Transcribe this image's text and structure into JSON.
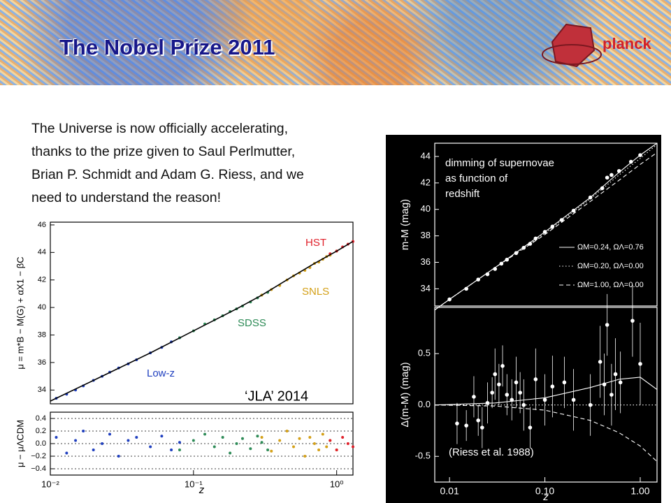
{
  "header": {
    "title": "The Nobel Prize 2011",
    "logo": "planck"
  },
  "text": {
    "lines": [
      "The Universe is now officially accelerating,",
      "thanks to the prize given to Saul Perlmutter,",
      "Brian P. Schmidt and Adam G. Riess, and we",
      "need to understand the reason!"
    ]
  },
  "chart_data": [
    {
      "type": "scatter",
      "log_x": true,
      "xlim": [
        0.01,
        1.3
      ],
      "ylim": [
        33,
        46.2
      ],
      "yticks": [
        34,
        36,
        38,
        40,
        42,
        44,
        46
      ],
      "ylabel": "μ = m*B − M(G) + αX1 − βC",
      "annotations": [
        "‘JLA’ 2014"
      ],
      "series": [
        {
          "name": "Low-z",
          "color": "#1f3fbf",
          "x": [
            0.011,
            0.013,
            0.015,
            0.017,
            0.02,
            0.023,
            0.026,
            0.03,
            0.035,
            0.04,
            0.05,
            0.06,
            0.07,
            0.08
          ],
          "values": [
            33.4,
            33.7,
            34.0,
            34.3,
            34.7,
            35.0,
            35.3,
            35.6,
            35.9,
            36.2,
            36.7,
            37.1,
            37.5,
            37.8
          ]
        },
        {
          "name": "SDSS",
          "color": "#2e8b57",
          "x": [
            0.08,
            0.1,
            0.12,
            0.14,
            0.16,
            0.18,
            0.2,
            0.22,
            0.25,
            0.28,
            0.3,
            0.33
          ],
          "values": [
            37.8,
            38.3,
            38.8,
            39.1,
            39.4,
            39.7,
            39.9,
            40.1,
            40.4,
            40.7,
            40.9,
            41.1
          ]
        },
        {
          "name": "SNLS",
          "color": "#d4a017",
          "x": [
            0.3,
            0.35,
            0.4,
            0.45,
            0.5,
            0.55,
            0.6,
            0.65,
            0.7,
            0.75,
            0.8,
            0.85,
            0.9,
            1.0
          ],
          "values": [
            40.9,
            41.3,
            41.6,
            42.0,
            42.3,
            42.5,
            42.7,
            42.9,
            43.2,
            43.3,
            43.5,
            43.7,
            43.8,
            44.1
          ]
        },
        {
          "name": "HST",
          "color": "#e0202a",
          "x": [
            0.9,
            1.0,
            1.1,
            1.2,
            1.3
          ],
          "values": [
            43.9,
            44.1,
            44.4,
            44.6,
            44.8
          ]
        },
        {
          "color": "#000000",
          "dash": "solid",
          "x": [
            0.01,
            0.02,
            0.05,
            0.1,
            0.2,
            0.3,
            0.5,
            0.7,
            1.0,
            1.3
          ],
          "values": [
            33.2,
            34.7,
            36.7,
            38.3,
            39.9,
            40.9,
            42.3,
            43.2,
            44.1,
            44.8
          ]
        }
      ]
    },
    {
      "type": "scatter",
      "log_x": true,
      "xlim": [
        0.01,
        1.3
      ],
      "ylim": [
        -0.5,
        0.5
      ],
      "grid": true,
      "yticks": [
        {
          "value": -0.4,
          "label": "−0.4"
        },
        {
          "value": -0.2,
          "label": "−0.2"
        },
        {
          "value": 0,
          "label": "0.0"
        },
        0.2,
        0.4
      ],
      "xticks": [
        {
          "value": 0.01,
          "label": "10⁻²"
        },
        {
          "value": 0.1,
          "label": "10⁻¹"
        },
        {
          "value": 1,
          "label": "10⁰"
        }
      ],
      "ylabel": "μ − μΛCDM",
      "xlabel": "z",
      "series": [
        {
          "color": "#1f3fbf",
          "x": [
            0.011,
            0.013,
            0.015,
            0.017,
            0.02,
            0.023,
            0.026,
            0.03,
            0.035,
            0.04,
            0.05,
            0.06,
            0.07,
            0.08
          ],
          "values": [
            0.1,
            -0.15,
            0.05,
            0.2,
            -0.1,
            0.0,
            0.15,
            -0.2,
            0.05,
            0.1,
            -0.05,
            0.12,
            -0.1,
            0.02
          ]
        },
        {
          "color": "#2e8b57",
          "x": [
            0.08,
            0.1,
            0.12,
            0.14,
            0.16,
            0.18,
            0.2,
            0.22,
            0.25,
            0.28,
            0.3,
            0.33
          ],
          "values": [
            -0.1,
            0.05,
            0.15,
            -0.05,
            0.1,
            -0.15,
            0.0,
            0.08,
            -0.08,
            0.12,
            0.02,
            -0.1
          ]
        },
        {
          "color": "#d4a017",
          "x": [
            0.3,
            0.35,
            0.4,
            0.45,
            0.5,
            0.55,
            0.6,
            0.65,
            0.7,
            0.75,
            0.8,
            0.85,
            0.9,
            1.0
          ],
          "values": [
            0.1,
            -0.12,
            0.05,
            0.2,
            -0.05,
            0.08,
            -0.2,
            0.1,
            0.0,
            -0.1,
            0.15,
            -0.05,
            0.05,
            -0.1
          ]
        },
        {
          "color": "#e0202a",
          "x": [
            0.9,
            1.0,
            1.1,
            1.2,
            1.3
          ],
          "values": [
            0.05,
            -0.1,
            0.1,
            0.0,
            -0.05
          ]
        }
      ]
    },
    {
      "type": "scatter",
      "log_x": true,
      "xlim": [
        0.007,
        1.5
      ],
      "ylim": [
        32.7,
        45
      ],
      "yticks": [
        34,
        36,
        38,
        40,
        42,
        44
      ],
      "ylabel": "m-M (mag)",
      "annotations": [
        "dimming of supernovae",
        "as function of",
        "redshift"
      ],
      "series": [
        {
          "color": "#ffffff",
          "x": [
            0.01,
            0.015,
            0.02,
            0.025,
            0.03,
            0.035,
            0.04,
            0.05,
            0.06,
            0.07,
            0.08,
            0.1,
            0.12,
            0.15,
            0.2,
            0.3,
            0.4,
            0.45,
            0.5,
            0.6,
            0.8,
            1.0
          ],
          "values": [
            33.2,
            34.0,
            34.7,
            35.1,
            35.5,
            35.9,
            36.2,
            36.7,
            37.1,
            37.4,
            37.8,
            38.3,
            38.7,
            39.2,
            39.9,
            40.9,
            41.6,
            42.4,
            42.6,
            42.9,
            43.6,
            44.1
          ]
        },
        {
          "name": "ΩM=0.24, ΩΛ=0.76",
          "color": "#ffffff",
          "dash": "solid",
          "x": [
            0.007,
            0.01,
            0.03,
            0.1,
            0.3,
            0.6,
            1.0,
            1.5
          ],
          "values": [
            32.4,
            33.2,
            35.6,
            38.3,
            40.9,
            42.8,
            44.1,
            45.0
          ]
        },
        {
          "name": "ΩM=0.20, ΩΛ=0.00",
          "color": "#ffffff",
          "dash": "dotted",
          "x": [
            0.007,
            0.01,
            0.03,
            0.1,
            0.3,
            0.6,
            1.0,
            1.5
          ],
          "values": [
            32.4,
            33.2,
            35.6,
            38.2,
            40.8,
            42.6,
            43.85,
            44.9
          ]
        },
        {
          "name": "ΩM=1.00, ΩΛ=0.00",
          "color": "#ffffff",
          "dash": "dashed",
          "x": [
            0.007,
            0.01,
            0.03,
            0.1,
            0.3,
            0.6,
            1.0,
            1.5
          ],
          "values": [
            32.4,
            33.2,
            35.6,
            38.1,
            40.6,
            42.2,
            43.4,
            44.3
          ]
        }
      ]
    },
    {
      "type": "scatter",
      "log_x": true,
      "xlim": [
        0.007,
        1.5
      ],
      "ylim": [
        -0.75,
        0.95
      ],
      "yticks": [
        -0.5,
        {
          "value": 0,
          "label": "0.0"
        },
        0.5
      ],
      "xticks": [
        0.01,
        {
          "value": 0.1,
          "label": "0.10"
        },
        {
          "value": 1,
          "label": "1.00"
        }
      ],
      "ylabel": "Δ(m-M) (mag)",
      "xlabel": "z",
      "annotations": [
        "(Riess et al. 1988)"
      ],
      "series": [
        {
          "color": "#ffffff",
          "x": [
            0.012,
            0.015,
            0.018,
            0.02,
            0.022,
            0.025,
            0.028,
            0.03,
            0.033,
            0.036,
            0.04,
            0.045,
            0.05,
            0.055,
            0.06,
            0.07,
            0.08,
            0.1,
            0.12,
            0.16,
            0.2,
            0.3,
            0.38,
            0.42,
            0.45,
            0.5,
            0.55,
            0.62,
            0.83,
            1.0
          ],
          "values": [
            -0.18,
            -0.2,
            0.08,
            -0.15,
            -0.22,
            0.02,
            0.12,
            0.3,
            0.2,
            0.38,
            0.1,
            0.05,
            0.22,
            0.12,
            0.0,
            -0.22,
            0.25,
            0.05,
            0.18,
            0.22,
            0.05,
            0.0,
            0.42,
            0.2,
            0.78,
            0.1,
            0.3,
            0.22,
            0.82,
            0.4
          ],
          "errors": [
            0.2,
            0.15,
            0.2,
            0.15,
            0.2,
            0.2,
            0.15,
            0.25,
            0.2,
            0.2,
            0.2,
            0.2,
            0.25,
            0.2,
            0.25,
            0.2,
            0.3,
            0.25,
            0.3,
            0.25,
            0.3,
            0.3,
            0.35,
            0.3,
            0.3,
            0.3,
            0.35,
            0.3,
            0.35,
            0.4
          ]
        },
        {
          "color": "#ffffff",
          "dash": "solid",
          "x": [
            0.007,
            0.03,
            0.1,
            0.3,
            0.6,
            1.0,
            1.5
          ],
          "values": [
            0.0,
            0.02,
            0.07,
            0.17,
            0.25,
            0.27,
            0.15
          ]
        },
        {
          "color": "#ffffff",
          "dash": "dotted",
          "x": [
            0.007,
            1.5
          ],
          "values": [
            0.0,
            0.0
          ]
        },
        {
          "color": "#ffffff",
          "dash": "dashed",
          "x": [
            0.007,
            0.03,
            0.1,
            0.3,
            0.6,
            1.0,
            1.5
          ],
          "values": [
            0.0,
            -0.01,
            -0.05,
            -0.15,
            -0.27,
            -0.4,
            -0.55
          ]
        }
      ]
    }
  ]
}
